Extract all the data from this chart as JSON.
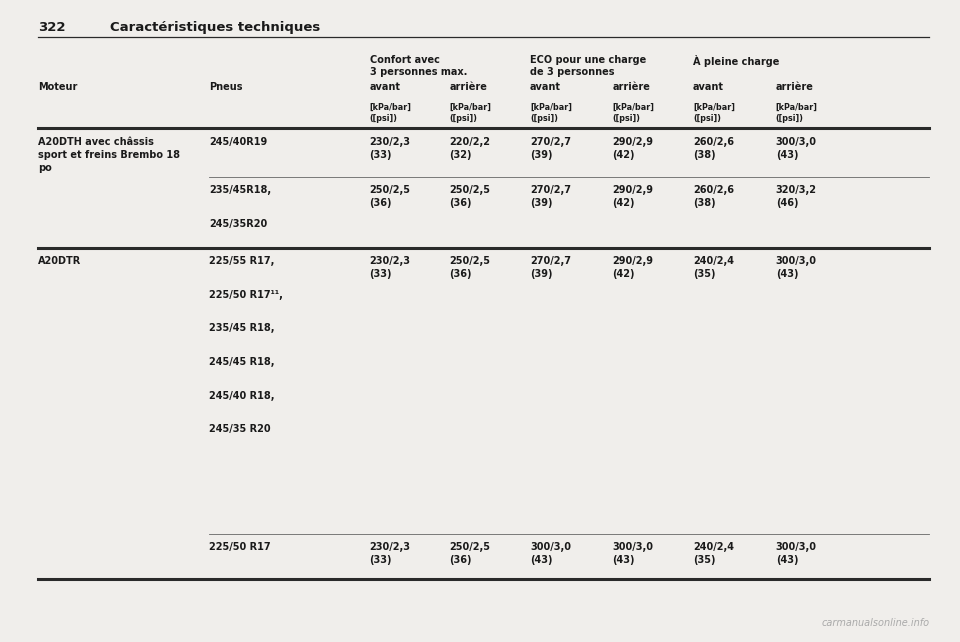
{
  "page_number": "322",
  "page_title": "Caractéristiques techniques",
  "bg_color": "#f0eeeb",
  "text_color": "#1a1a1a",
  "header_col1": "Moteur",
  "header_col2": "Pneus",
  "header_group1": "Confort avec\n3 personnes max.",
  "header_group2": "ECO pour une charge\nde 3 personnes",
  "header_group3": "À pleine charge",
  "subheader_avant": "avant",
  "subheader_arriere": "arrière",
  "subheader_unit": "[kPa/bar]\n([psi])",
  "col_x": {
    "moteur": 0.04,
    "pneus": 0.218,
    "c_avant": 0.385,
    "c_arriere": 0.468,
    "e_avant": 0.552,
    "e_arriere": 0.638,
    "p_avant": 0.722,
    "p_arriere": 0.808
  },
  "rows": [
    {
      "moteur": "A20DTH avec châssis\nsport et freins Brembo 18\npo",
      "pneus_groups": [
        {
          "pneus": "245/40R19",
          "c_avant": "230/2,3\n(33)",
          "c_arriere": "220/2,2\n(32)",
          "e_avant": "270/2,7\n(39)",
          "e_arriere": "290/2,9\n(42)",
          "p_avant": "260/2,6\n(38)",
          "p_arriere": "300/3,0\n(43)"
        },
        {
          "pneus": "235/45R18,\n\n245/35R20",
          "c_avant": "250/2,5\n(36)",
          "c_arriere": "250/2,5\n(36)",
          "e_avant": "270/2,7\n(39)",
          "e_arriere": "290/2,9\n(42)",
          "p_avant": "260/2,6\n(38)",
          "p_arriere": "320/3,2\n(46)"
        }
      ]
    },
    {
      "moteur": "A20DTR",
      "pneus_groups": [
        {
          "pneus": "225/55 R17,\n\n225/50 R17¹¹,\n\n235/45 R18,\n\n245/45 R18,\n\n245/40 R18,\n\n245/35 R20",
          "c_avant": "230/2,3\n(33)",
          "c_arriere": "250/2,5\n(36)",
          "e_avant": "270/2,7\n(39)",
          "e_arriere": "290/2,9\n(42)",
          "p_avant": "240/2,4\n(35)",
          "p_arriere": "300/3,0\n(43)"
        },
        {
          "pneus": "225/50 R17",
          "c_avant": "230/2,3\n(33)",
          "c_arriere": "250/2,5\n(36)",
          "e_avant": "300/3,0\n(43)",
          "e_arriere": "300/3,0\n(43)",
          "p_avant": "240/2,4\n(35)",
          "p_arriere": "300/3,0\n(43)"
        }
      ]
    }
  ],
  "watermark": "carmanualsonline.info"
}
